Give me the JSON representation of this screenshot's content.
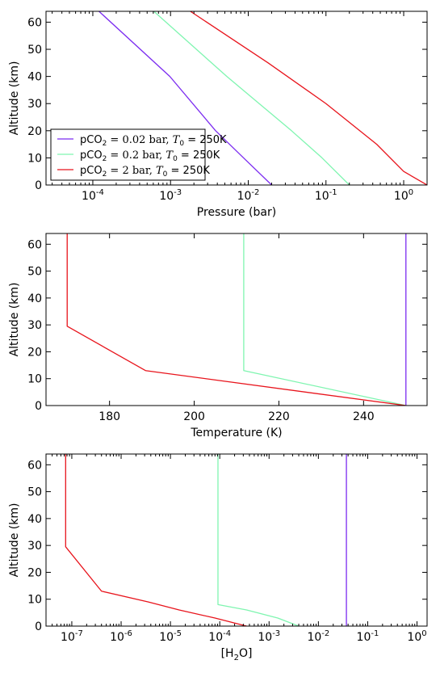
{
  "chart_data": [
    {
      "type": "line",
      "title": "",
      "xlabel": "Pressure (bar)",
      "ylabel": "Altitude (km)",
      "xscale": "log",
      "xlim": [
        2.5e-05,
        2.0
      ],
      "ylim": [
        0,
        64
      ],
      "xticks": [
        0.0001,
        0.001,
        0.01,
        0.1,
        1
      ],
      "xtick_labels": [
        {
          "base": "10",
          "exp": "-4"
        },
        {
          "base": "10",
          "exp": "-3"
        },
        {
          "base": "10",
          "exp": "-2"
        },
        {
          "base": "10",
          "exp": "-1"
        },
        {
          "base": "10",
          "exp": "0"
        }
      ],
      "yticks": [
        0,
        10,
        20,
        30,
        40,
        50,
        60
      ],
      "ytick_labels": [
        "0",
        "10",
        "20",
        "30",
        "40",
        "50",
        "60"
      ],
      "grid": false,
      "legend_position": "lower-left",
      "series": [
        {
          "name": "pCO₂ = 0.02 bar, T₀ = 250K",
          "color": "#7B2BF0",
          "x": [
            0.02,
            0.0087,
            0.0038,
            0.00098,
            0.00012
          ],
          "y": [
            0,
            10,
            20,
            40,
            64
          ]
        },
        {
          "name": "pCO₂ = 0.2 bar, T₀ = 250K",
          "color": "#7FF5B0",
          "x": [
            0.2,
            0.089,
            0.036,
            0.0053,
            0.00061
          ],
          "y": [
            0,
            10,
            20,
            40,
            64
          ]
        },
        {
          "name": "pCO₂ = 2 bar, T₀ = 250K",
          "color": "#E8141C",
          "x": [
            2.0,
            1.0,
            0.45,
            0.1,
            0.018,
            0.0018
          ],
          "y": [
            0,
            5,
            15,
            30,
            45,
            64
          ]
        }
      ]
    },
    {
      "type": "line",
      "title": "",
      "xlabel": "Temperature (K)",
      "ylabel": "Altitude (km)",
      "xscale": "linear",
      "xlim": [
        165,
        255
      ],
      "ylim": [
        0,
        64
      ],
      "xticks": [
        180,
        200,
        220,
        240
      ],
      "xtick_labels": [
        "180",
        "200",
        "220",
        "240"
      ],
      "yticks": [
        0,
        10,
        20,
        30,
        40,
        50,
        60
      ],
      "ytick_labels": [
        "0",
        "10",
        "20",
        "30",
        "40",
        "50",
        "60"
      ],
      "grid": false,
      "series": [
        {
          "color": "#7B2BF0",
          "x": [
            250,
            250
          ],
          "y": [
            0,
            64
          ]
        },
        {
          "color": "#7FF5B0",
          "x": [
            250,
            211.7,
            211.7
          ],
          "y": [
            0,
            13,
            64
          ]
        },
        {
          "color": "#E8141C",
          "x": [
            250,
            188.5,
            170,
            170
          ],
          "y": [
            0,
            13,
            29.5,
            64
          ]
        }
      ]
    },
    {
      "type": "line",
      "title": "",
      "xlabel": "[H2O]",
      "xlabel_parts": {
        "pre": "[H",
        "sub": "2",
        "post": "O]"
      },
      "ylabel": "Altitude (km)",
      "xscale": "log",
      "xlim": [
        3e-08,
        1.6
      ],
      "ylim": [
        0,
        64
      ],
      "xticks": [
        1e-07,
        1e-06,
        1e-05,
        0.0001,
        0.001,
        0.01,
        0.1,
        1
      ],
      "xtick_labels": [
        {
          "base": "10",
          "exp": "-7"
        },
        {
          "base": "10",
          "exp": "-6"
        },
        {
          "base": "10",
          "exp": "-5"
        },
        {
          "base": "10",
          "exp": "-4"
        },
        {
          "base": "10",
          "exp": "-3"
        },
        {
          "base": "10",
          "exp": "-2"
        },
        {
          "base": "10",
          "exp": "-1"
        },
        {
          "base": "10",
          "exp": "0"
        }
      ],
      "yticks": [
        0,
        10,
        20,
        30,
        40,
        50,
        60
      ],
      "ytick_labels": [
        "0",
        "10",
        "20",
        "30",
        "40",
        "50",
        "60"
      ],
      "grid": false,
      "series": [
        {
          "color": "#7B2BF0",
          "x": [
            0.037,
            0.037
          ],
          "y": [
            0,
            64
          ]
        },
        {
          "color": "#7FF5B0",
          "x": [
            0.004,
            0.0015,
            0.00035,
            9.2e-05,
            9.2e-05
          ],
          "y": [
            0,
            3,
            6,
            8,
            64
          ]
        },
        {
          "color": "#E8141C",
          "x": [
            0.00035,
            8e-05,
            1.5e-05,
            3.5e-06,
            4e-07,
            7.5e-08,
            7.5e-08
          ],
          "y": [
            0,
            3,
            6,
            9,
            13,
            29.5,
            64
          ]
        }
      ]
    }
  ]
}
